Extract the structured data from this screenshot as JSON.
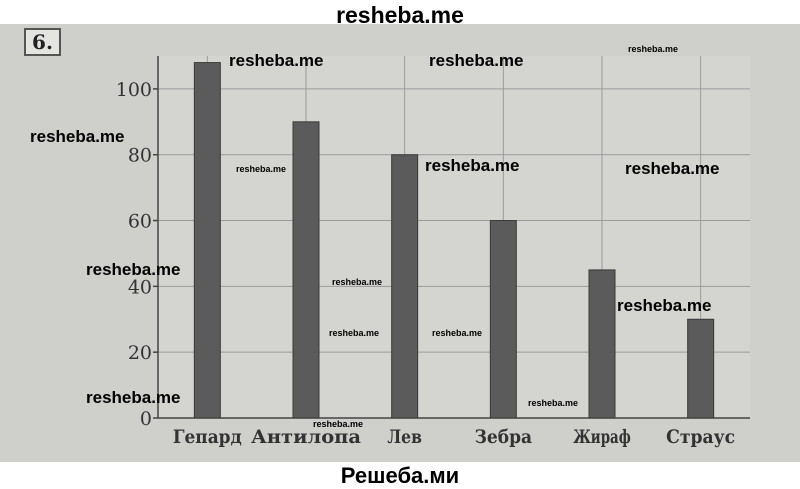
{
  "header": {
    "site_name": "resheba.me"
  },
  "footer": {
    "site_name": "Решеба.ми"
  },
  "problem": {
    "number": "6."
  },
  "watermarks": [
    "resheba.me",
    "resheba.me",
    "resheba.me",
    "resheba.me",
    "resheba.me",
    "resheba.me",
    "resheba.me",
    "resheba.me",
    "resheba.me",
    "resheba.me",
    "resheba.me",
    "resheba.me",
    "resheba.me",
    "resheba.me",
    "resheba.me"
  ],
  "colors": {
    "bar": "#5b5b5b",
    "bar_edge": "#3a3a3a",
    "axis": "#444444",
    "grid": "#9a9a9a",
    "paper": "#cfcfcb",
    "plot_bg": "#d4d4d0"
  },
  "chart_data": {
    "type": "bar",
    "categories": [
      "Гепард",
      "Антилопа",
      "Лев",
      "Зебра",
      "Жираф",
      "Страус"
    ],
    "values": [
      108,
      90,
      80,
      60,
      45,
      30
    ],
    "ylim": [
      0,
      110
    ],
    "yticks": [
      0,
      20,
      40,
      60,
      80,
      100
    ],
    "grid": true,
    "legend": "none"
  }
}
